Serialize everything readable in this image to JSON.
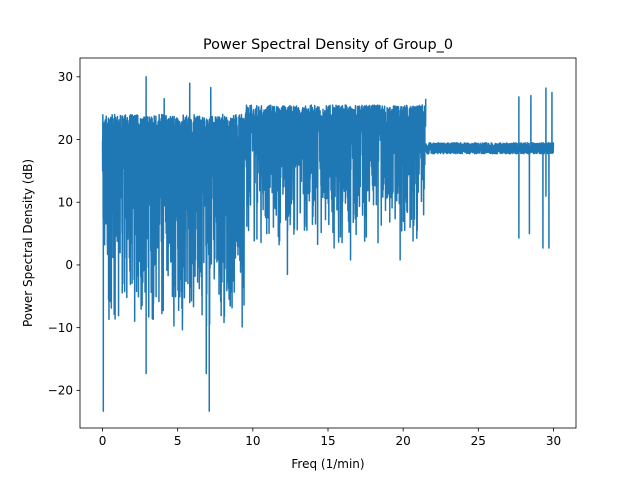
{
  "chart_data": {
    "type": "line",
    "title": "Power Spectral Density of Group_0",
    "xlabel": "Freq (1/min)",
    "ylabel": "Power Spectral Density (dB)",
    "xlim": [
      -1.5,
      31.5
    ],
    "ylim": [
      -26,
      33
    ],
    "xticks": [
      0,
      5,
      10,
      15,
      20,
      25,
      30
    ],
    "yticks": [
      -20,
      -10,
      0,
      10,
      20,
      30
    ],
    "xtick_labels": [
      "0",
      "5",
      "10",
      "15",
      "20",
      "25",
      "30"
    ],
    "ytick_labels": [
      "−20",
      "−10",
      "0",
      "10",
      "20",
      "30"
    ],
    "grid": false,
    "legend": "none",
    "series": [
      {
        "color": "#1f77b4",
        "segments": [
          {
            "x_start": 0.0,
            "x_end": 9.5,
            "y_min": -11,
            "y_max": 24,
            "spikes_high": [
              [
                0.05,
                19.5
              ],
              [
                2.9,
                30.0
              ],
              [
                5.8,
                29.0
              ],
              [
                7.2,
                28.3
              ],
              [
                4.1,
                26.5
              ]
            ],
            "spikes_low": [
              [
                0.05,
                -23.3
              ],
              [
                2.9,
                -17.3
              ],
              [
                6.9,
                -17.3
              ],
              [
                7.1,
                -23.3
              ]
            ]
          },
          {
            "x_start": 9.5,
            "x_end": 21.5,
            "y_min": 2.5,
            "y_max": 25.5,
            "spikes_high": [
              [
                21.5,
                26.5
              ]
            ],
            "spikes_low": [
              [
                12.3,
                -1.5
              ],
              [
                16.5,
                0.8
              ],
              [
                19.8,
                0.8
              ]
            ]
          },
          {
            "x_start": 21.5,
            "x_end": 30.0,
            "y_min": 16.5,
            "y_max": 20.0,
            "spikes_high": [
              [
                27.7,
                26.8
              ],
              [
                28.5,
                27.0
              ],
              [
                29.5,
                28.2
              ],
              [
                29.9,
                27.5
              ]
            ],
            "spikes_low": [
              [
                27.7,
                4.3
              ],
              [
                28.4,
                5.0
              ],
              [
                29.3,
                2.7
              ],
              [
                29.7,
                2.7
              ],
              [
                29.5,
                11.0
              ]
            ]
          }
        ]
      }
    ]
  }
}
